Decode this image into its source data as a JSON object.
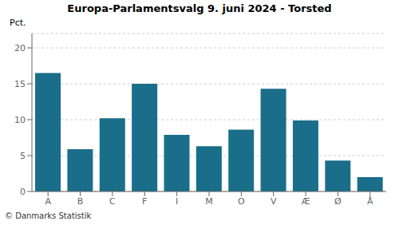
{
  "chart_data": {
    "type": "bar",
    "title": "Europa-Parlamentsvalg 9. juni 2024 - Torsted",
    "ylabel": "Pct.",
    "annotations": [
      "© Danmarks Statistik"
    ],
    "categories": [
      "A",
      "B",
      "C",
      "F",
      "I",
      "M",
      "O",
      "V",
      "Æ",
      "Ø",
      "Å"
    ],
    "values": [
      16.5,
      5.9,
      10.2,
      15.0,
      7.9,
      6.3,
      8.6,
      14.3,
      9.9,
      4.3,
      2.0
    ],
    "color": "#1a6e8a",
    "ylim": [
      0,
      22
    ],
    "yticks": [
      0,
      5,
      10,
      15,
      20
    ],
    "grid": true
  }
}
